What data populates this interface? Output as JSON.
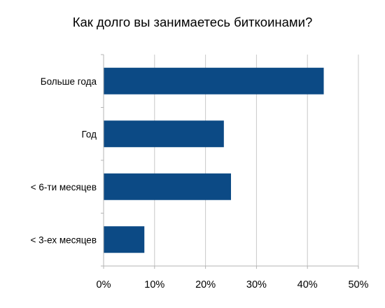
{
  "chart_data": {
    "type": "bar",
    "orientation": "horizontal",
    "title": "Как долго вы занимаетесь биткоинами?",
    "categories": [
      "Больше года",
      "Год",
      "< 6-ти месяцев",
      "< 3-ех месяцев"
    ],
    "values": [
      43.2,
      23.6,
      25.0,
      8.0
    ],
    "value_unit": "%",
    "xlim": [
      0,
      50
    ],
    "xticks": [
      0,
      10,
      20,
      30,
      40,
      50
    ],
    "xtick_labels": [
      "0%",
      "10%",
      "20%",
      "30%",
      "40%",
      "50%"
    ],
    "xlabel": "",
    "ylabel": "",
    "grid": "vertical",
    "legend": "none",
    "bar_color": "#0c4a85"
  }
}
